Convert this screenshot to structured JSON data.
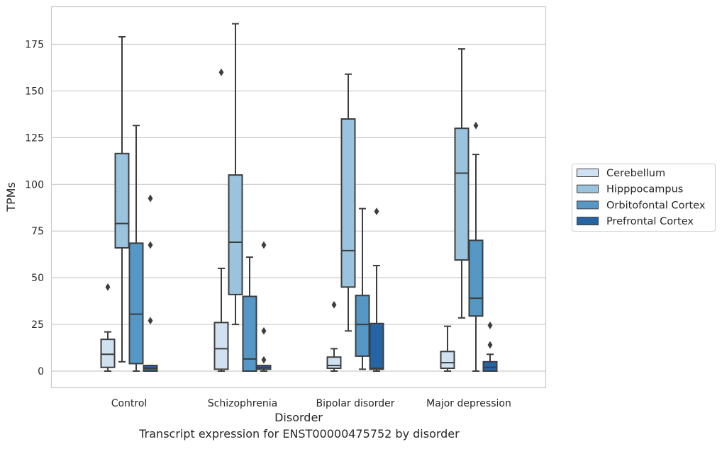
{
  "caption": "Transcript expression for ENST00000475752 by disorder",
  "chart_data": {
    "type": "box",
    "title": "",
    "xlabel": "Disorder",
    "ylabel": "TPMs",
    "ylim": [
      -9,
      196
    ],
    "yticks": [
      0,
      25,
      50,
      75,
      100,
      125,
      150,
      175
    ],
    "grid": "horizontal",
    "legend_position": "right",
    "categories": [
      "Control",
      "Schizophrenia",
      "Bipolar disorder",
      "Major depression"
    ],
    "series": [
      {
        "name": "Cerebellum",
        "color": "#d0e1f2",
        "boxes": [
          {
            "whislo": 0,
            "q1": 2,
            "med": 9,
            "q3": 17,
            "whishi": 21,
            "fliers": [
              45
            ]
          },
          {
            "whislo": 0,
            "q1": 1,
            "med": 12,
            "q3": 26,
            "whishi": 55,
            "fliers": [
              160
            ]
          },
          {
            "whislo": 0,
            "q1": 1.5,
            "med": 3,
            "q3": 7.5,
            "whishi": 12,
            "fliers": [
              35.5
            ]
          },
          {
            "whislo": 0,
            "q1": 1.5,
            "med": 4.5,
            "q3": 10.5,
            "whishi": 24,
            "fliers": []
          }
        ]
      },
      {
        "name": "Hipppocampus",
        "color": "#9ac3dd",
        "boxes": [
          {
            "whislo": 5,
            "q1": 66,
            "med": 79,
            "q3": 116.5,
            "whishi": 179,
            "fliers": []
          },
          {
            "whislo": 25,
            "q1": 41,
            "med": 69,
            "q3": 105,
            "whishi": 186,
            "fliers": []
          },
          {
            "whislo": 21.5,
            "q1": 45,
            "med": 64.5,
            "q3": 135,
            "whishi": 159,
            "fliers": []
          },
          {
            "whislo": 28.5,
            "q1": 59.5,
            "med": 106,
            "q3": 130,
            "whishi": 172.5,
            "fliers": []
          }
        ]
      },
      {
        "name": "Orbitofontal Cortex",
        "color": "#5597c5",
        "boxes": [
          {
            "whislo": 0,
            "q1": 4,
            "med": 30.5,
            "q3": 68.5,
            "whishi": 131.5,
            "fliers": []
          },
          {
            "whislo": 0,
            "q1": 0,
            "med": 6.5,
            "q3": 40,
            "whishi": 61,
            "fliers": []
          },
          {
            "whislo": 1,
            "q1": 8,
            "med": 25,
            "q3": 40.5,
            "whishi": 87,
            "fliers": []
          },
          {
            "whislo": 0,
            "q1": 29.5,
            "med": 39,
            "q3": 70,
            "whishi": 116,
            "fliers": [
              131.5
            ]
          }
        ]
      },
      {
        "name": "Prefrontal Cortex",
        "color": "#2565a6",
        "boxes": [
          {
            "whislo": 0,
            "q1": 0,
            "med": 1.5,
            "q3": 3,
            "whishi": 3,
            "fliers": [
              27,
              67.5,
              92.5
            ]
          },
          {
            "whislo": 0,
            "q1": 1,
            "med": 2,
            "q3": 3,
            "whishi": 3,
            "fliers": [
              6,
              21.5,
              67.5
            ]
          },
          {
            "whislo": 0,
            "q1": 1,
            "med": 1.5,
            "q3": 25.5,
            "whishi": 56.5,
            "fliers": [
              85.5
            ]
          },
          {
            "whislo": 0,
            "q1": 0,
            "med": 2,
            "q3": 5,
            "whishi": 9,
            "fliers": [
              14,
              24.5
            ]
          }
        ]
      }
    ]
  }
}
